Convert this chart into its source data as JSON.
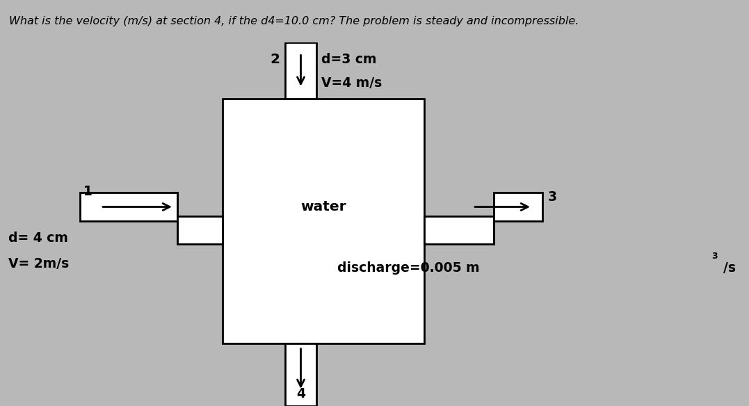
{
  "title": "What is the velocity (m/s) at section 4, if the d4=10.0 cm? The problem is steady and incompressible.",
  "bg_color": "#b8b8b8",
  "inner_bg": "#d0ccc8",
  "title_bg": "#e8e8e8",
  "title_fontsize": 11.5,
  "section2_label": "2",
  "section2_text1": "d=3 cm",
  "section2_text2": "V=4 m/s",
  "section3_label": "3",
  "section1_label": "1",
  "section1_d": "d= 4 cm",
  "section1_v": "V= 2m/s",
  "section4_label": "4",
  "water_label": "water",
  "discharge_text": "discharge=0.005 m",
  "discharge_super": "3",
  "discharge_end": "/s"
}
